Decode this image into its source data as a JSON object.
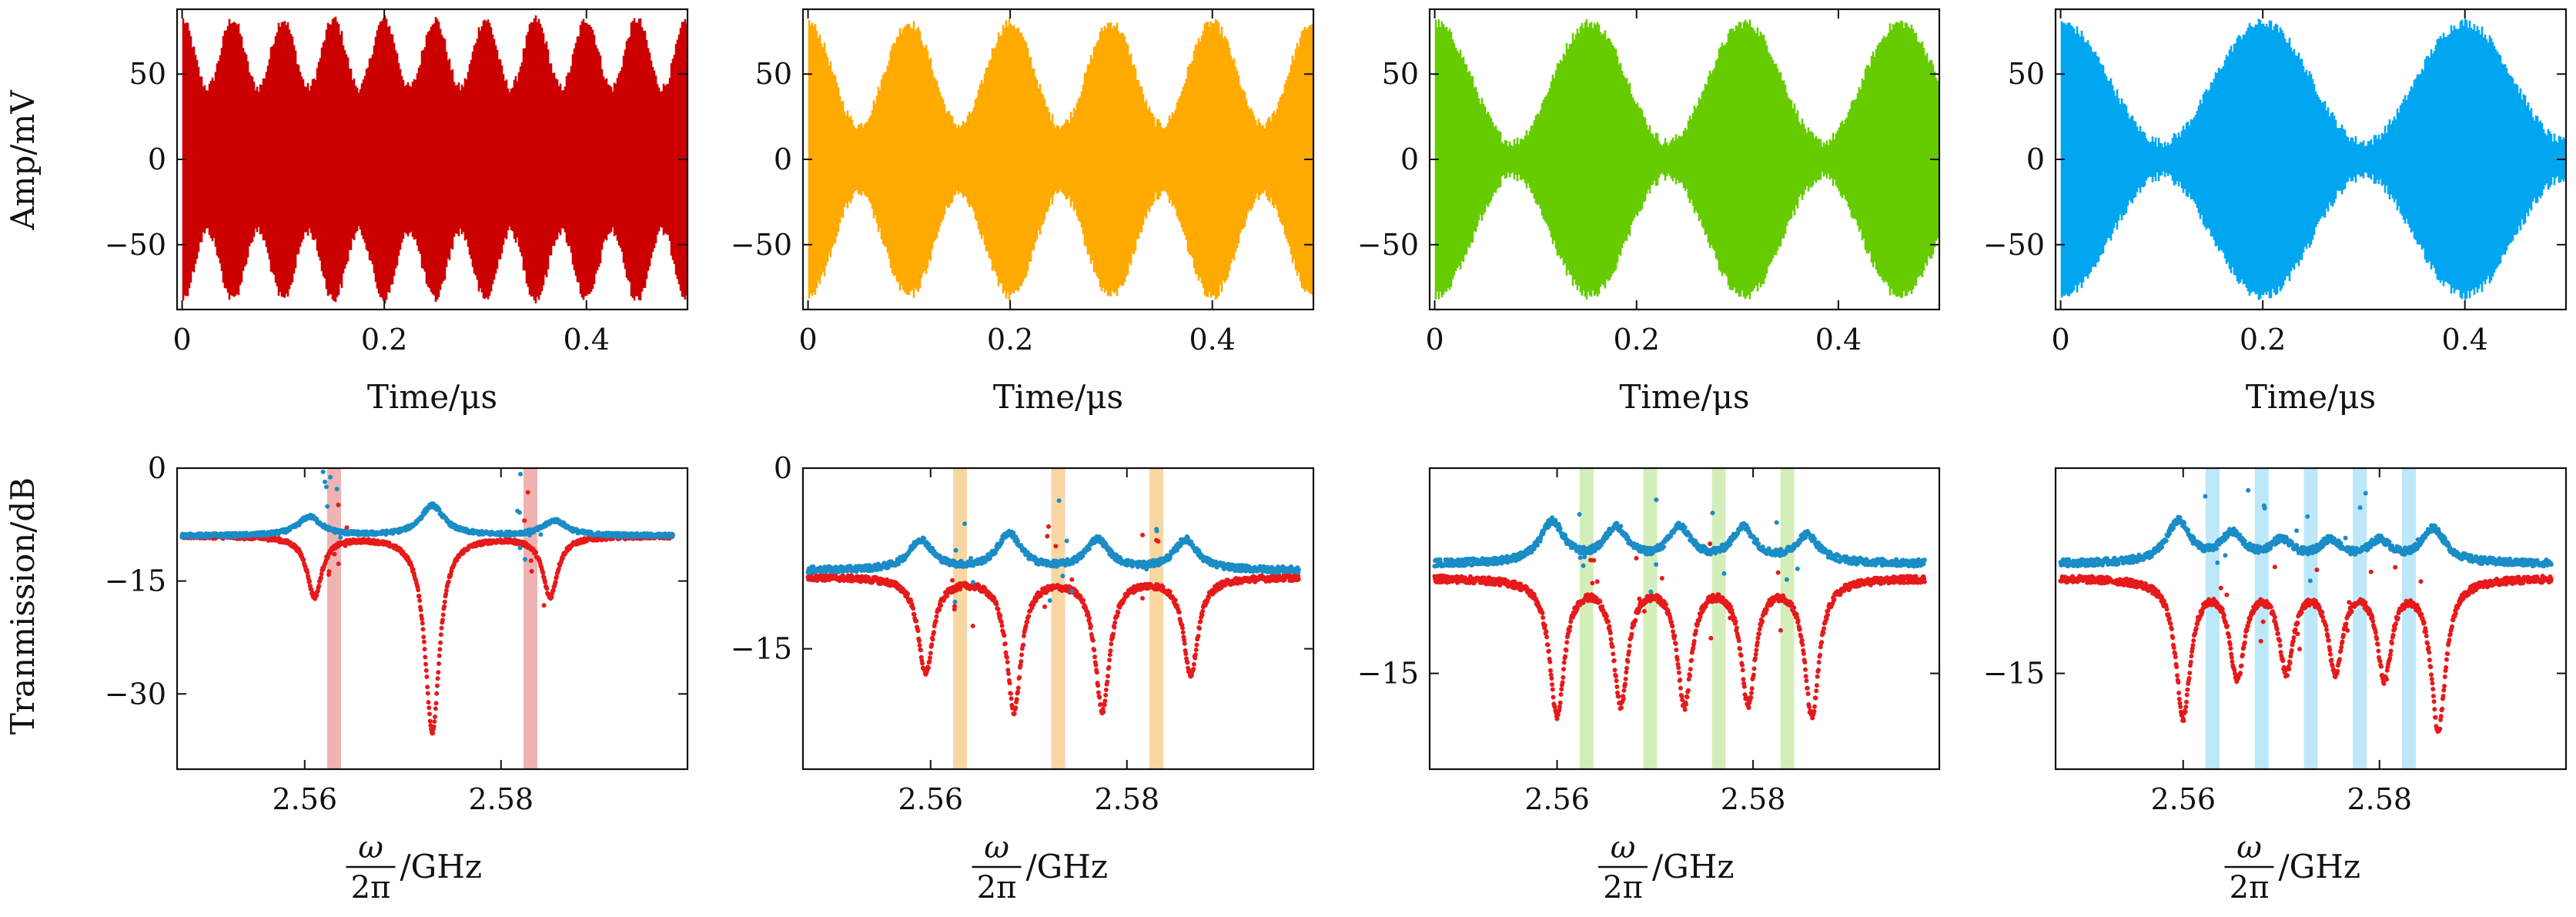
{
  "figure": {
    "time_xlabel": "Time/μs",
    "freq_xlabel_numerator": "ω",
    "freq_xlabel_denominator": "2π",
    "freq_xlabel_unit": "/GHz",
    "amp_ylabel": "Amp/mV",
    "trans_ylabel": "Tranmission/dB"
  },
  "chart_data": [
    {
      "id": "amp-1",
      "type": "line",
      "xlabel": "Time/μs",
      "ylabel": "Amp/mV",
      "xlim": [
        -0.005,
        0.5
      ],
      "ylim": [
        -88,
        88
      ],
      "xticks": [
        0,
        0.2,
        0.4
      ],
      "xtick_labels": [
        "0",
        "0.2",
        "0.4"
      ],
      "yticks": [
        50,
        0,
        -50
      ],
      "ytick_labels": [
        "50",
        "0",
        "−50"
      ],
      "color": "#cc0000",
      "series": [
        {
          "carrier_envelope": {
            "base_mV": 62,
            "mod_mV": 20,
            "beat_freq_per_us": 20,
            "beats_in_window": 10
          }
        }
      ]
    },
    {
      "id": "amp-2",
      "type": "line",
      "xlabel": "Time/μs",
      "ylabel": "",
      "xlim": [
        -0.005,
        0.5
      ],
      "ylim": [
        -88,
        88
      ],
      "xticks": [
        0,
        0.2,
        0.4
      ],
      "xtick_labels": [
        "0",
        "0.2",
        "0.4"
      ],
      "yticks": [
        50,
        0,
        -50
      ],
      "ytick_labels": [
        "50",
        "0",
        "−50"
      ],
      "color": "#ffaa00",
      "series": [
        {
          "carrier_envelope": {
            "base_mV": 50,
            "mod_mV": 30,
            "beat_freq_per_us": 10,
            "beats_in_window": 5
          }
        }
      ]
    },
    {
      "id": "amp-3",
      "type": "line",
      "xlabel": "Time/μs",
      "ylabel": "",
      "xlim": [
        -0.005,
        0.5
      ],
      "ylim": [
        -88,
        88
      ],
      "xticks": [
        0,
        0.2,
        0.4
      ],
      "xtick_labels": [
        "0",
        "0.2",
        "0.4"
      ],
      "yticks": [
        50,
        0,
        -50
      ],
      "ytick_labels": [
        "50",
        "0",
        "−50"
      ],
      "color": "#66cc00",
      "series": [
        {
          "carrier_envelope": {
            "base_mV": 45,
            "mod_mV": 35,
            "beat_freq_per_us": 6.5,
            "beats_in_window": 3
          }
        }
      ]
    },
    {
      "id": "amp-4",
      "type": "line",
      "xlabel": "Time/μs",
      "ylabel": "",
      "xlim": [
        -0.005,
        0.5
      ],
      "ylim": [
        -88,
        88
      ],
      "xticks": [
        0,
        0.2,
        0.4
      ],
      "xtick_labels": [
        "0",
        "0.2",
        "0.4"
      ],
      "yticks": [
        50,
        0,
        -50
      ],
      "ytick_labels": [
        "50",
        "0",
        "−50"
      ],
      "color": "#00a6f0",
      "series": [
        {
          "carrier_envelope": {
            "base_mV": 45,
            "mod_mV": 35,
            "beat_freq_per_us": 5,
            "beats_in_window": 2.5
          }
        }
      ]
    },
    {
      "id": "trans-1",
      "type": "scatter",
      "xlabel": "ω/2π /GHz",
      "ylabel": "Tranmission/dB",
      "xlim": [
        2.547,
        2.599
      ],
      "ylim": [
        -40,
        0
      ],
      "xticks": [
        2.56,
        2.58
      ],
      "xtick_labels": [
        "2.56",
        "2.58"
      ],
      "yticks": [
        0,
        -15,
        -30
      ],
      "ytick_labels": [
        "0",
        "−15",
        "−30"
      ],
      "highlight_bands_GHz": [
        2.563,
        2.583
      ],
      "band_color": "#e99a9a",
      "series": [
        {
          "color": "#e61a1a",
          "baseline_dB": -9,
          "dips": [
            {
              "f_GHz": 2.561,
              "depth_dB": -17
            },
            {
              "f_GHz": 2.573,
              "depth_dB": -35
            },
            {
              "f_GHz": 2.585,
              "depth_dB": -17
            }
          ]
        },
        {
          "color": "#1a8cc6",
          "baseline_dB": -9,
          "peaks": [
            {
              "f_GHz": 2.5605,
              "height_dB": -6.5
            },
            {
              "f_GHz": 2.573,
              "height_dB": -5
            },
            {
              "f_GHz": 2.5855,
              "height_dB": -7
            }
          ]
        }
      ]
    },
    {
      "id": "trans-2",
      "type": "scatter",
      "xlabel": "ω/2π /GHz",
      "ylabel": "",
      "xlim": [
        2.547,
        2.599
      ],
      "ylim": [
        -25,
        0
      ],
      "xticks": [
        2.56,
        2.58
      ],
      "xtick_labels": [
        "2.56",
        "2.58"
      ],
      "yticks": [
        0,
        -15
      ],
      "ytick_labels": [
        "0",
        "−15"
      ],
      "highlight_bands_GHz": [
        2.563,
        2.573,
        2.583
      ],
      "band_color": "#f5c984",
      "series": [
        {
          "color": "#e61a1a",
          "baseline_dB": -9,
          "dips": [
            {
              "f_GHz": 2.5595,
              "depth_dB": -17
            },
            {
              "f_GHz": 2.5685,
              "depth_dB": -20
            },
            {
              "f_GHz": 2.5775,
              "depth_dB": -20
            },
            {
              "f_GHz": 2.5865,
              "depth_dB": -17
            }
          ]
        },
        {
          "color": "#1a8cc6",
          "baseline_dB": -8.5,
          "peaks": [
            {
              "f_GHz": 2.559,
              "height_dB": -6
            },
            {
              "f_GHz": 2.568,
              "height_dB": -5.5
            },
            {
              "f_GHz": 2.577,
              "height_dB": -6
            },
            {
              "f_GHz": 2.586,
              "height_dB": -6
            }
          ]
        }
      ]
    },
    {
      "id": "trans-3",
      "type": "scatter",
      "xlabel": "ω/2π /GHz",
      "ylabel": "",
      "xlim": [
        2.547,
        2.599
      ],
      "ylim": [
        -22,
        0
      ],
      "xticks": [
        2.56,
        2.58
      ],
      "xtick_labels": [
        "2.56",
        "2.58"
      ],
      "yticks": [
        -15
      ],
      "ytick_labels": [
        "−15"
      ],
      "highlight_bands_GHz": [
        2.563,
        2.5695,
        2.5765,
        2.5835
      ],
      "band_color": "#c6e8a4",
      "series": [
        {
          "color": "#e61a1a",
          "baseline_dB": -8,
          "dips": [
            {
              "f_GHz": 2.56,
              "depth_dB": -18
            },
            {
              "f_GHz": 2.5665,
              "depth_dB": -17
            },
            {
              "f_GHz": 2.573,
              "depth_dB": -17
            },
            {
              "f_GHz": 2.5795,
              "depth_dB": -17
            },
            {
              "f_GHz": 2.586,
              "depth_dB": -18
            }
          ]
        },
        {
          "color": "#1a8cc6",
          "baseline_dB": -7,
          "peaks": [
            {
              "f_GHz": 2.5595,
              "height_dB": -4
            },
            {
              "f_GHz": 2.566,
              "height_dB": -4.5
            },
            {
              "f_GHz": 2.5725,
              "height_dB": -4.5
            },
            {
              "f_GHz": 2.579,
              "height_dB": -4.5
            },
            {
              "f_GHz": 2.5855,
              "height_dB": -5
            }
          ]
        }
      ]
    },
    {
      "id": "trans-4",
      "type": "scatter",
      "xlabel": "ω/2π /GHz",
      "ylabel": "",
      "xlim": [
        2.547,
        2.599
      ],
      "ylim": [
        -22,
        0
      ],
      "xticks": [
        2.56,
        2.58
      ],
      "xtick_labels": [
        "2.56",
        "2.58"
      ],
      "yticks": [
        -15
      ],
      "ytick_labels": [
        "−15"
      ],
      "highlight_bands_GHz": [
        2.563,
        2.568,
        2.573,
        2.578,
        2.583
      ],
      "band_color": "#a6e0f8",
      "series": [
        {
          "color": "#e61a1a",
          "baseline_dB": -8,
          "dips": [
            {
              "f_GHz": 2.56,
              "depth_dB": -18
            },
            {
              "f_GHz": 2.5655,
              "depth_dB": -15
            },
            {
              "f_GHz": 2.5705,
              "depth_dB": -14.5
            },
            {
              "f_GHz": 2.5755,
              "depth_dB": -14.5
            },
            {
              "f_GHz": 2.5805,
              "depth_dB": -15
            },
            {
              "f_GHz": 2.586,
              "depth_dB": -19
            }
          ]
        },
        {
          "color": "#1a8cc6",
          "baseline_dB": -7,
          "peaks": [
            {
              "f_GHz": 2.5595,
              "height_dB": -4
            },
            {
              "f_GHz": 2.565,
              "height_dB": -5
            },
            {
              "f_GHz": 2.57,
              "height_dB": -5.5
            },
            {
              "f_GHz": 2.575,
              "height_dB": -5.5
            },
            {
              "f_GHz": 2.58,
              "height_dB": -5.5
            },
            {
              "f_GHz": 2.5855,
              "height_dB": -4.5
            }
          ]
        }
      ]
    }
  ]
}
